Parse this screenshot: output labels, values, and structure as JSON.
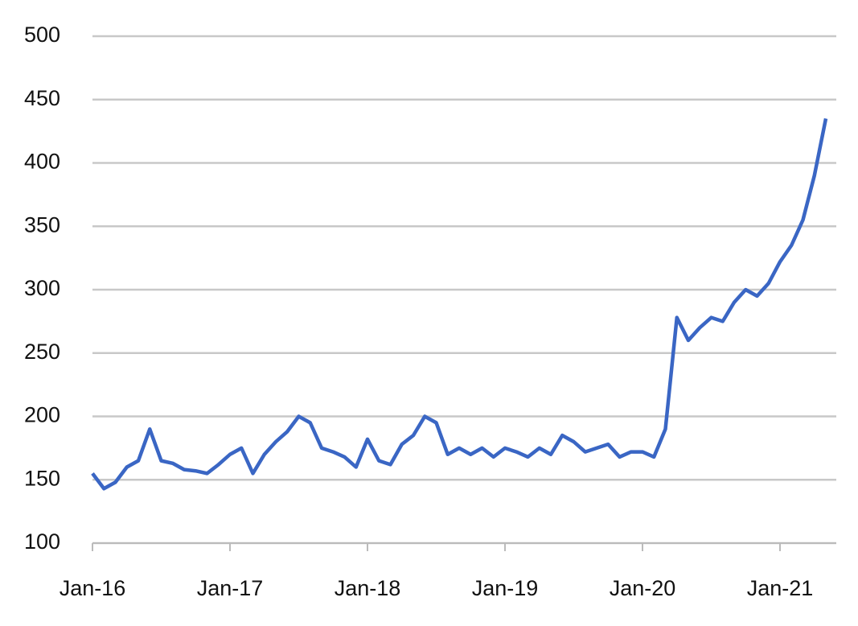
{
  "chart_data": {
    "type": "line",
    "x": [
      "2016-01",
      "2016-02",
      "2016-03",
      "2016-04",
      "2016-05",
      "2016-06",
      "2016-07",
      "2016-08",
      "2016-09",
      "2016-10",
      "2016-11",
      "2016-12",
      "2017-01",
      "2017-02",
      "2017-03",
      "2017-04",
      "2017-05",
      "2017-06",
      "2017-07",
      "2017-08",
      "2017-09",
      "2017-10",
      "2017-11",
      "2017-12",
      "2018-01",
      "2018-02",
      "2018-03",
      "2018-04",
      "2018-05",
      "2018-06",
      "2018-07",
      "2018-08",
      "2018-09",
      "2018-10",
      "2018-11",
      "2018-12",
      "2019-01",
      "2019-02",
      "2019-03",
      "2019-04",
      "2019-05",
      "2019-06",
      "2019-07",
      "2019-08",
      "2019-09",
      "2019-10",
      "2019-11",
      "2019-12",
      "2020-01",
      "2020-02",
      "2020-03",
      "2020-04",
      "2020-05",
      "2020-06",
      "2020-07",
      "2020-08",
      "2020-09",
      "2020-10",
      "2020-11",
      "2020-12",
      "2021-01",
      "2021-02",
      "2021-03",
      "2021-04",
      "2021-05"
    ],
    "series": [
      {
        "color": "#3a66c4",
        "values": [
          155,
          143,
          148,
          160,
          165,
          190,
          165,
          163,
          158,
          157,
          155,
          162,
          170,
          175,
          155,
          170,
          180,
          188,
          200,
          195,
          175,
          172,
          168,
          160,
          182,
          165,
          162,
          178,
          185,
          200,
          195,
          170,
          175,
          170,
          175,
          168,
          175,
          172,
          168,
          175,
          170,
          185,
          180,
          172,
          175,
          178,
          168,
          172,
          172,
          168,
          190,
          278,
          260,
          270,
          278,
          275,
          290,
          300,
          295,
          305,
          322,
          335,
          355,
          390,
          435
        ]
      }
    ],
    "xticks": [
      {
        "value": "2016-01",
        "label": "Jan-16"
      },
      {
        "value": "2017-01",
        "label": "Jan-17"
      },
      {
        "value": "2018-01",
        "label": "Jan-18"
      },
      {
        "value": "2019-01",
        "label": "Jan-19"
      },
      {
        "value": "2020-01",
        "label": "Jan-20"
      },
      {
        "value": "2021-01",
        "label": "Jan-21"
      }
    ],
    "ylim": [
      100,
      500
    ],
    "yticks": [
      100,
      150,
      200,
      250,
      300,
      350,
      400,
      450,
      500
    ],
    "grid": true
  }
}
